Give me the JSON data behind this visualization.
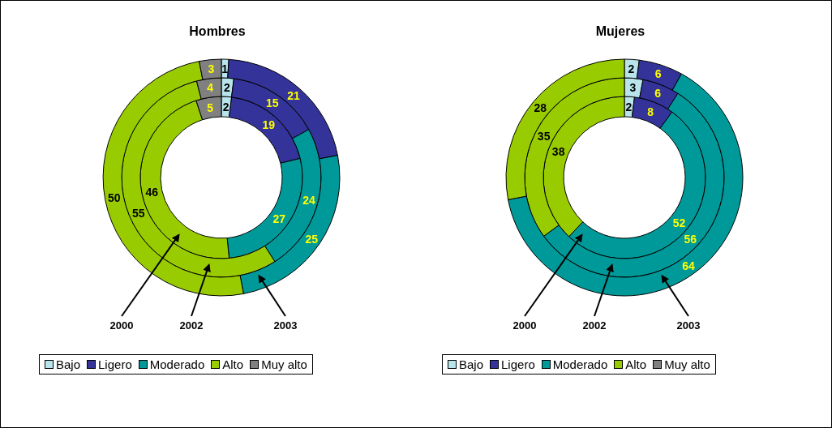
{
  "chart_data": [
    {
      "type": "donut",
      "title": "Hombres",
      "categories": [
        "Bajo",
        "Ligero",
        "Moderado",
        "Alto",
        "Muy alto"
      ],
      "colors": [
        "#b8e4ec",
        "#333399",
        "#009999",
        "#99cc00",
        "#808080"
      ],
      "data_labels": true,
      "legend": "bottom",
      "annotations": [
        "2000",
        "2002",
        "2003"
      ],
      "series": [
        {
          "values": [
            2,
            19,
            27,
            46,
            5
          ]
        },
        {
          "values": [
            2,
            15,
            24,
            55,
            4
          ]
        },
        {
          "values": [
            1,
            21,
            25,
            50,
            3
          ]
        }
      ]
    },
    {
      "type": "donut",
      "title": "Mujeres",
      "categories": [
        "Bajo",
        "Ligero",
        "Moderado",
        "Alto",
        "Muy alto"
      ],
      "colors": [
        "#b8e4ec",
        "#333399",
        "#009999",
        "#99cc00",
        "#808080"
      ],
      "data_labels": true,
      "legend": "bottom",
      "annotations": [
        "2000",
        "2002",
        "2003"
      ],
      "series": [
        {
          "values": [
            2,
            8,
            52,
            38,
            null
          ]
        },
        {
          "values": [
            3,
            6,
            56,
            35,
            null
          ]
        },
        {
          "values": [
            2,
            6,
            64,
            28,
            null
          ]
        }
      ]
    }
  ]
}
